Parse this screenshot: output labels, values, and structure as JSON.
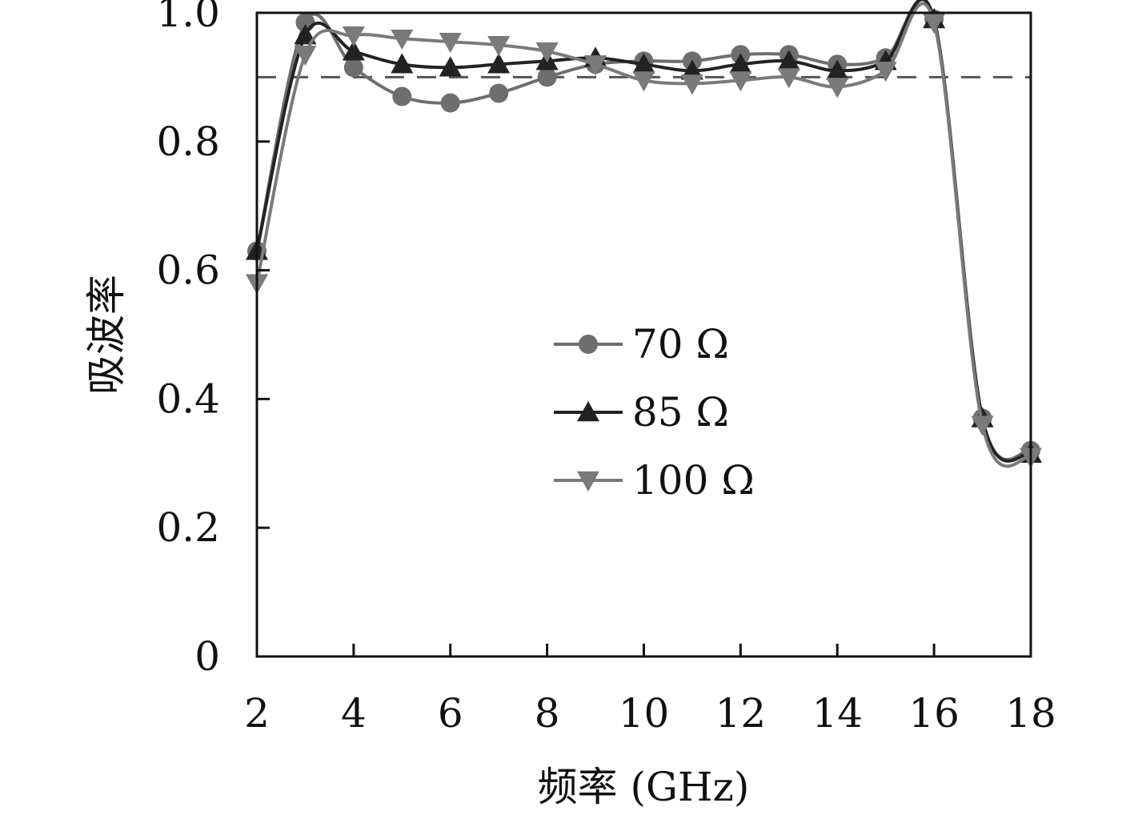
{
  "chart_data": {
    "type": "line",
    "xlabel": "频率 (GHz)",
    "ylabel": "吸波率",
    "xlim": [
      2,
      18
    ],
    "ylim": [
      0,
      1.0
    ],
    "x_ticks": [
      2,
      4,
      6,
      8,
      10,
      12,
      14,
      16,
      18
    ],
    "x_tick_labels": [
      "2",
      "4",
      "6",
      "8",
      "10",
      "12",
      "14",
      "16",
      "18"
    ],
    "y_ticks": [
      0,
      0.2,
      0.4,
      0.6,
      0.8,
      1.0
    ],
    "y_tick_labels": [
      "0",
      "0.2",
      "0.4",
      "0.6",
      "0.8",
      "1.0"
    ],
    "reference_line": {
      "y": 0.9,
      "style": "dashed"
    },
    "legend_position": "center",
    "grid": false,
    "x": [
      2,
      3,
      4,
      5,
      6,
      7,
      8,
      9,
      10,
      11,
      12,
      13,
      14,
      15,
      16,
      17,
      18
    ],
    "series": [
      {
        "name": "70 Ω",
        "marker": "circle",
        "color": "#6e6e6e",
        "values": [
          0.63,
          0.985,
          0.915,
          0.87,
          0.86,
          0.875,
          0.9,
          0.92,
          0.925,
          0.925,
          0.935,
          0.935,
          0.92,
          0.93,
          0.99,
          0.37,
          0.32
        ]
      },
      {
        "name": "85 Ω",
        "marker": "triangle-up",
        "color": "#222222",
        "values": [
          0.63,
          0.965,
          0.94,
          0.92,
          0.915,
          0.92,
          0.925,
          0.93,
          0.92,
          0.91,
          0.92,
          0.925,
          0.91,
          0.925,
          0.99,
          0.37,
          0.315
        ]
      },
      {
        "name": "100 Ω",
        "marker": "triangle-down",
        "color": "#7a7a7a",
        "values": [
          0.58,
          0.935,
          0.965,
          0.96,
          0.955,
          0.95,
          0.94,
          0.92,
          0.895,
          0.89,
          0.895,
          0.9,
          0.885,
          0.91,
          0.985,
          0.36,
          0.31
        ]
      }
    ]
  }
}
